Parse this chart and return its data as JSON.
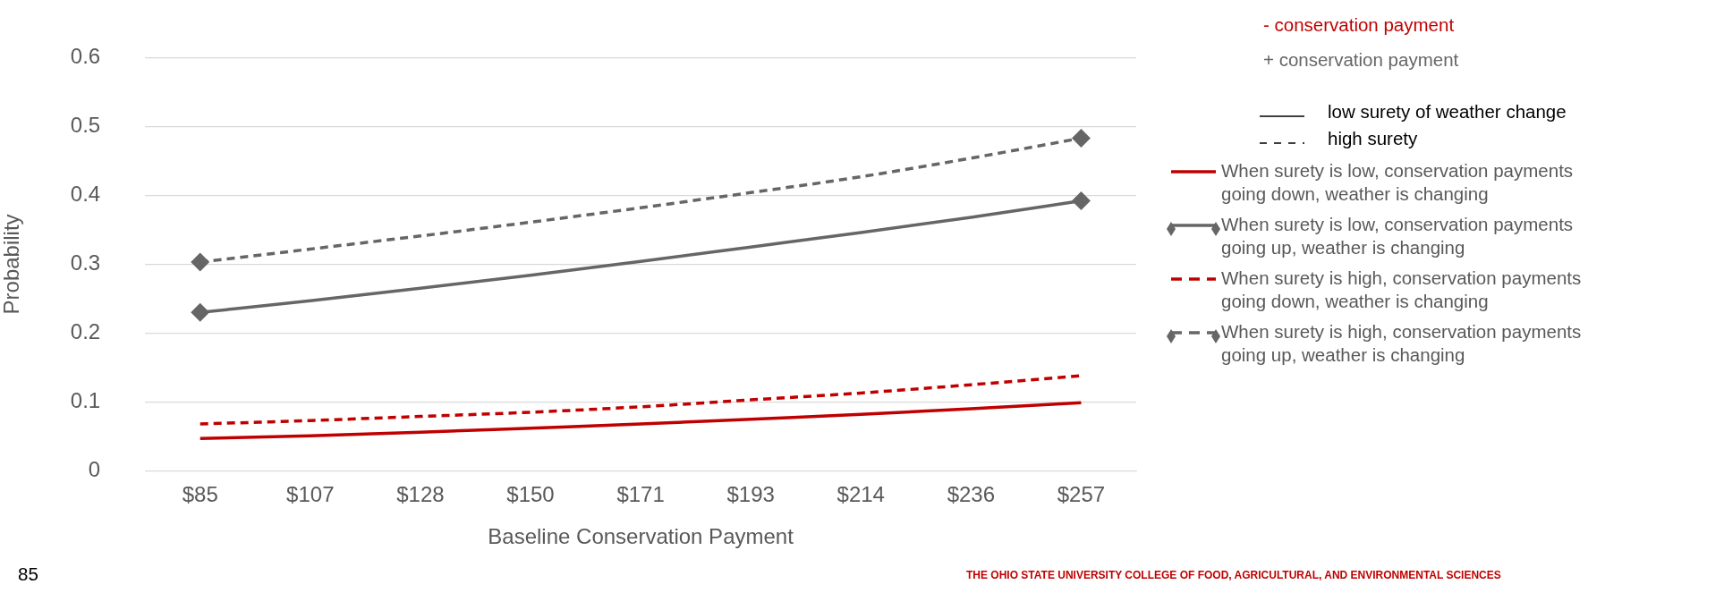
{
  "chart_data": {
    "type": "line",
    "xlabel": "Baseline Conservation Payment",
    "ylabel": "Probability",
    "categories": [
      "$85",
      "$107",
      "$128",
      "$150",
      "$171",
      "$193",
      "$214",
      "$236",
      "$257"
    ],
    "series": [
      {
        "name": "When surety is low, conservation payments going down, weather is changing",
        "color": "#c00000",
        "line_style": "solid",
        "marker": "none",
        "values": [
          0.047,
          0.051,
          0.056,
          0.062,
          0.068,
          0.075,
          0.082,
          0.09,
          0.099
        ]
      },
      {
        "name": "When surety is low, conservation payments going up, weather is changing",
        "color": "#666666",
        "line_style": "solid",
        "marker": "none",
        "values": [
          0.23,
          0.247,
          0.265,
          0.284,
          0.304,
          0.325,
          0.346,
          0.368,
          0.392
        ]
      },
      {
        "name": "When surety is high, conservation payments going down, weather is changing",
        "color": "#c00000",
        "line_style": "dashed",
        "marker": "none",
        "values": [
          0.068,
          0.073,
          0.079,
          0.085,
          0.093,
          0.103,
          0.113,
          0.125,
          0.138
        ]
      },
      {
        "name": "When surety is high, conservation payments going up, weather is changing",
        "color": "#666666",
        "line_style": "dashed",
        "marker": "none",
        "values": [
          0.303,
          0.322,
          0.341,
          0.361,
          0.382,
          0.404,
          0.427,
          0.454,
          0.483
        ]
      },
      {
        "type": "scatter",
        "color": "#666666",
        "marker": "diamond",
        "x": [
          "$85",
          "$257"
        ],
        "values": [
          0.23,
          0.392
        ]
      },
      {
        "type": "scatter",
        "color": "#666666",
        "marker": "diamond",
        "x": [
          "$85",
          "$257"
        ],
        "values": [
          0.303,
          0.483
        ]
      }
    ],
    "ylim": [
      0,
      0.6
    ],
    "yticks": [
      0,
      0.1,
      0.2,
      0.3,
      0.4,
      0.5,
      0.6
    ],
    "grid": "y",
    "legend": "right",
    "annotations": [
      "- conservation payment",
      "+ conservation payment",
      "low surety of weather change",
      "high surety",
      "85",
      "THE OHIO STATE UNIVERSITY COLLEGE OF FOOD, AGRICULTURAL, AND ENVIRONMENTAL SCIENCES"
    ]
  }
}
